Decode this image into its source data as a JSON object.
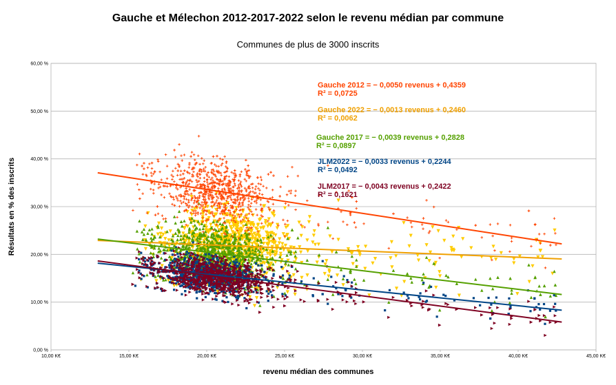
{
  "chart_data": {
    "type": "scatter",
    "title": "Gauche et Mélechon 2012-2017-2022 selon le revenu médian par commune",
    "subtitle": "Communes de plus de 3000 inscrits",
    "xlabel": "revenu médian des communes",
    "ylabel": "Résultats en % des inscrits",
    "xlim": [
      10,
      45
    ],
    "ylim": [
      0,
      0.6
    ],
    "x_ticks": [
      {
        "v": 10,
        "label": "10,00 K€"
      },
      {
        "v": 15,
        "label": "15,00 K€"
      },
      {
        "v": 20,
        "label": "20,00 K€"
      },
      {
        "v": 25,
        "label": "25,00 K€"
      },
      {
        "v": 30,
        "label": "30,00 K€"
      },
      {
        "v": 35,
        "label": "35,00 K€"
      },
      {
        "v": 40,
        "label": "40,00 K€"
      },
      {
        "v": 45,
        "label": "45,00 K€"
      }
    ],
    "y_ticks": [
      {
        "v": 0,
        "label": "0,00 %"
      },
      {
        "v": 0.1,
        "label": "10,00 %"
      },
      {
        "v": 0.2,
        "label": "20,00 %"
      },
      {
        "v": 0.3,
        "label": "30,00 %"
      },
      {
        "v": 0.4,
        "label": "40,00 %"
      },
      {
        "v": 0.5,
        "label": "50,00 %"
      },
      {
        "v": 0.6,
        "label": "60,00 %"
      }
    ],
    "grid": true,
    "x_range_data": [
      13,
      42.8
    ],
    "series": [
      {
        "color": "#ffcc00",
        "marker": "triangle-down",
        "size": 2.6,
        "trend": {
          "slope": -0.0013,
          "intercept": 0.246,
          "color": "#f0a000"
        },
        "equation": "Gauche 2022 = − 0,0013 revenus + 0,2460",
        "r2": "R² = 0,0062",
        "center": 21.5,
        "spread": 3.5,
        "noise": 0.07
      },
      {
        "color": "#55a000",
        "marker": "triangle",
        "size": 2.2,
        "trend": {
          "slope": -0.0039,
          "intercept": 0.2828,
          "color": "#55a000"
        },
        "equation": "Gauche 2017 = − 0,0039 revenus + 0,2828",
        "r2": "R² = 0,0897",
        "center": 20.5,
        "spread": 3.2,
        "noise": 0.055
      },
      {
        "color": "#ff4400",
        "marker": "plus",
        "size": 1.8,
        "trend": {
          "slope": -0.005,
          "intercept": 0.4359,
          "color": "#ff4400"
        },
        "equation": "Gauche 2012 = − 0,0050 revenus + 0,4359",
        "r2": "R² = 0,0725",
        "center": 20.5,
        "spread": 3.2,
        "noise": 0.06
      },
      {
        "color": "#004586",
        "marker": "square",
        "size": 1.6,
        "trend": {
          "slope": -0.0033,
          "intercept": 0.2244,
          "color": "#004586"
        },
        "equation": "JLM2022 = − 0,0033 revenus + 0,2244",
        "r2": "R² = 0,0492",
        "center": 20.0,
        "spread": 2.8,
        "noise": 0.035
      },
      {
        "color": "#7e0021",
        "marker": "triangle-right",
        "size": 2.2,
        "trend": {
          "slope": -0.0043,
          "intercept": 0.2422,
          "color": "#7e0021"
        },
        "equation": "JLM2017 = − 0,0043 revenus + 0,2422",
        "r2": "R² = 0,1621",
        "center": 20.5,
        "spread": 3.2,
        "noise": 0.035
      }
    ]
  }
}
